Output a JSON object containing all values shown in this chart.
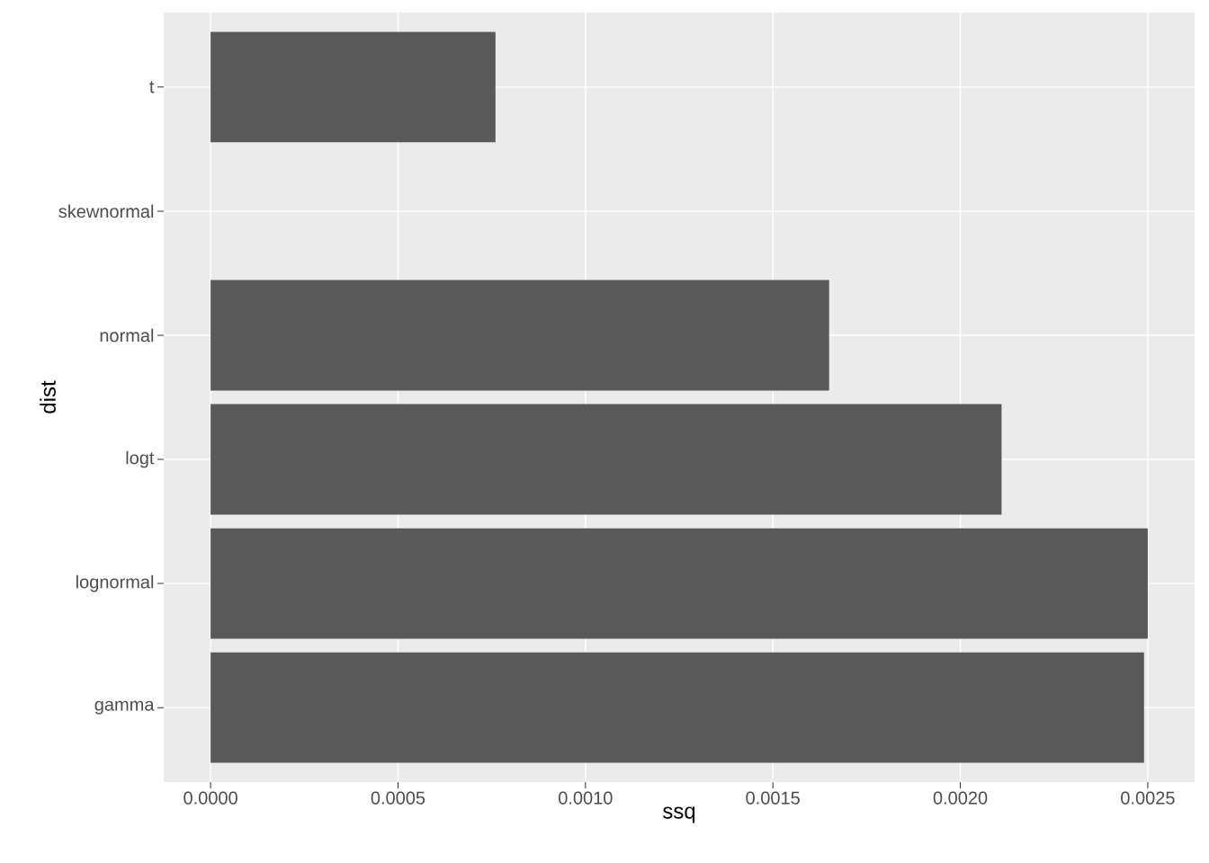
{
  "chart_data": {
    "type": "bar",
    "orientation": "horizontal",
    "xlabel": "ssq",
    "ylabel": "dist",
    "categories": [
      "t",
      "skewnormal",
      "normal",
      "logt",
      "lognormal",
      "gamma"
    ],
    "values": [
      0.00076,
      0,
      0.00165,
      0.00211,
      0.0025,
      0.00249
    ],
    "color": "#595959",
    "xlim": [
      -0.000125,
      0.002625
    ],
    "xticks": [
      {
        "value": 0,
        "label": "0.0000"
      },
      {
        "value": 0.0005,
        "label": "0.0005"
      },
      {
        "value": 0.001,
        "label": "0.0010"
      },
      {
        "value": 0.0015,
        "label": "0.0015"
      },
      {
        "value": 0.002,
        "label": "0.0020"
      },
      {
        "value": 0.0025,
        "label": "0.0025"
      }
    ],
    "grid": true
  }
}
